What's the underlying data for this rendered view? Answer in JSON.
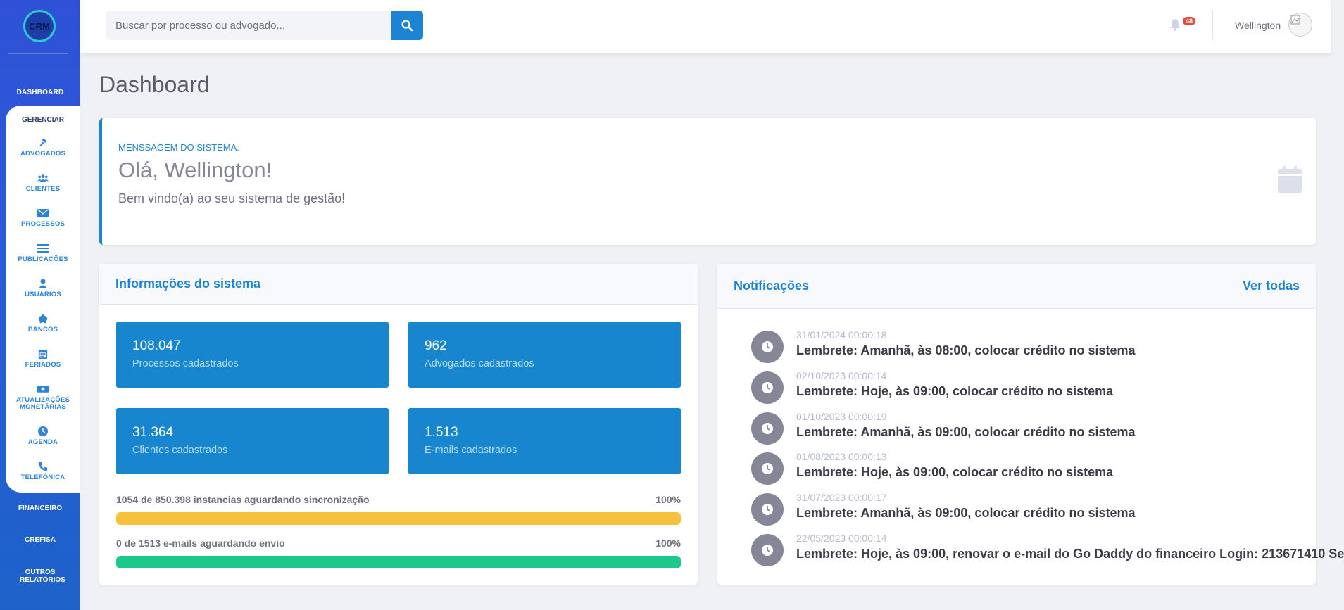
{
  "logo": {
    "text": "CRM"
  },
  "sidebar": {
    "top_item": "DASHBOARD",
    "group_label": "GERENCIAR",
    "items": [
      {
        "label": "ADVOGADOS",
        "icon": "gavel-icon"
      },
      {
        "label": "CLIENTES",
        "icon": "users-icon"
      },
      {
        "label": "PROCESSOS",
        "icon": "envelope-icon"
      },
      {
        "label": "PUBLICAÇÕES",
        "icon": "list-icon"
      },
      {
        "label": "USUÁRIOS",
        "icon": "user-icon"
      },
      {
        "label": "BANCOS",
        "icon": "piggy-bank-icon"
      },
      {
        "label": "FERIADOS",
        "icon": "calendar-icon"
      },
      {
        "label": "ATUALIZAÇÕES MONETÁRIAS",
        "icon": "money-icon"
      },
      {
        "label": "AGENDA",
        "icon": "clock-icon"
      },
      {
        "label": "TELEFÔNICA",
        "icon": "phone-icon"
      }
    ],
    "bottom_items": [
      "FINANCEIRO",
      "CREFISA",
      "OUTROS RELATÓRIOS"
    ]
  },
  "topbar": {
    "search_placeholder": "Buscar por processo ou advogado...",
    "notification_count": "48",
    "user_name": "Wellington"
  },
  "page": {
    "title": "Dashboard"
  },
  "message": {
    "label": "MENSSAGEM DO SISTEMA:",
    "title": "Olá, Wellington!",
    "text": "Bem vindo(a) ao seu sistema de gestão!"
  },
  "info": {
    "title": "Informações do sistema",
    "stats": [
      {
        "value": "108.047",
        "label": "Processos cadastrados"
      },
      {
        "value": "962",
        "label": "Advogados cadastrados"
      },
      {
        "value": "31.364",
        "label": "Clientes cadastrados"
      },
      {
        "value": "1.513",
        "label": "E-mails cadastrados"
      }
    ],
    "progress": [
      {
        "label": "1054 de 850.398 instancias aguardando sincronização",
        "percent_text": "100%",
        "percent": 100,
        "color": "#f6c23e"
      },
      {
        "label": "0 de 1513 e-mails aguardando envio",
        "percent_text": "100%",
        "percent": 100,
        "color": "#1cc88a"
      }
    ]
  },
  "notifications": {
    "title": "Notificações",
    "see_all": "Ver todas",
    "items": [
      {
        "date": "31/01/2024 00:00:18",
        "text": "Lembrete: Amanhã, às 08:00, colocar crédito no sistema"
      },
      {
        "date": "02/10/2023 00:00:14",
        "text": "Lembrete: Hoje, às 09:00, colocar crédito no sistema"
      },
      {
        "date": "01/10/2023 00:00:19",
        "text": "Lembrete: Amanhã, às 09:00, colocar crédito no sistema"
      },
      {
        "date": "01/08/2023 00:00:13",
        "text": "Lembrete: Hoje, às 09:00, colocar crédito no sistema"
      },
      {
        "date": "31/07/2023 00:00:17",
        "text": "Lembrete: Amanhã, às 09:00, colocar crédito no sistema"
      },
      {
        "date": "22/05/2023 00:00:14",
        "text": "Lembrete: Hoje, às 09:00, renovar o e-mail do Go Daddy do financeiro Login: 213671410 Se"
      }
    ]
  }
}
